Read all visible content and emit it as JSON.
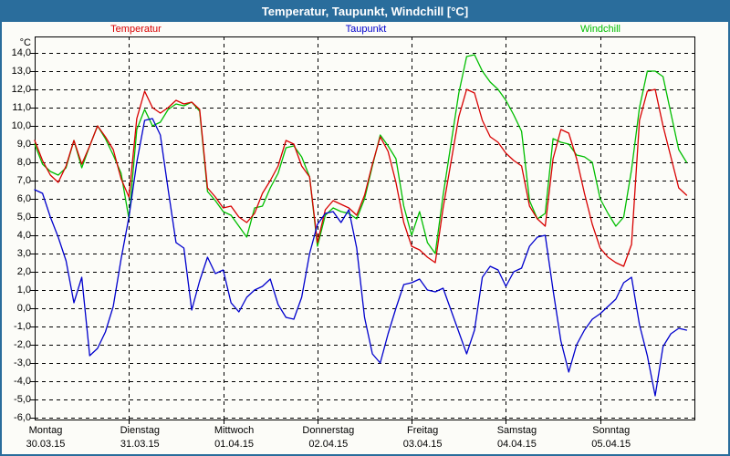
{
  "window": {
    "title": "Temperatur, Taupunkt, Windchill [°C]"
  },
  "frame_color": "#2a6d9c",
  "chart_data": {
    "type": "line",
    "title": "Temperatur, Taupunkt, Windchill [°C]",
    "y_unit": "°C",
    "ylim": [
      -6,
      14
    ],
    "y_tick_step": 1,
    "decimal_style": "comma",
    "grid": true,
    "legend_position": "top",
    "x_hours_range": [
      0,
      168
    ],
    "sample_interval_hours": 2,
    "days": [
      {
        "name": "Montag",
        "date": "30.03.15"
      },
      {
        "name": "Dienstag",
        "date": "31.03.15"
      },
      {
        "name": "Mittwoch",
        "date": "01.04.15"
      },
      {
        "name": "Donnerstag",
        "date": "02.04.15"
      },
      {
        "name": "Freitag",
        "date": "03.04.15"
      },
      {
        "name": "Samstag",
        "date": "04.04.15"
      },
      {
        "name": "Sonntag",
        "date": "05.04.15"
      }
    ],
    "series": [
      {
        "name": "Temperatur",
        "color": "#d80000",
        "values": [
          9.2,
          8.1,
          7.3,
          6.9,
          7.8,
          9.2,
          7.9,
          8.9,
          10.0,
          9.4,
          8.7,
          7.1,
          6.1,
          10.4,
          11.9,
          11.0,
          10.7,
          11.0,
          11.4,
          11.2,
          11.3,
          10.9,
          6.6,
          6.1,
          5.5,
          5.6,
          5.0,
          4.7,
          5.2,
          6.3,
          7.0,
          7.8,
          9.2,
          9.0,
          7.8,
          7.2,
          3.6,
          5.4,
          5.9,
          5.7,
          5.5,
          5.1,
          6.2,
          7.9,
          9.4,
          8.6,
          6.9,
          4.7,
          3.4,
          3.2,
          2.8,
          2.5,
          5.5,
          8.0,
          10.5,
          12.0,
          11.8,
          10.3,
          9.4,
          9.1,
          8.5,
          8.1,
          7.8,
          5.6,
          4.9,
          4.5,
          8.2,
          9.8,
          9.6,
          8.2,
          6.3,
          4.6,
          3.3,
          2.8,
          2.5,
          2.3,
          3.5,
          10.3,
          11.9,
          12.0,
          10.0,
          8.3,
          6.6,
          6.2
        ]
      },
      {
        "name": "Taupunkt",
        "color": "#0000cd",
        "values": [
          6.5,
          6.3,
          5.0,
          3.9,
          2.6,
          0.3,
          1.7,
          -2.6,
          -2.2,
          -1.3,
          0.1,
          2.7,
          5.0,
          8.0,
          10.3,
          10.4,
          9.5,
          6.5,
          3.6,
          3.3,
          -0.1,
          1.5,
          2.8,
          1.9,
          2.1,
          0.3,
          -0.2,
          0.6,
          1.0,
          1.2,
          1.6,
          0.2,
          -0.5,
          -0.6,
          0.6,
          3.0,
          4.6,
          5.2,
          5.3,
          4.7,
          5.4,
          3.3,
          -0.5,
          -2.5,
          -3.0,
          -1.4,
          0.0,
          1.3,
          1.4,
          1.6,
          1.0,
          0.9,
          1.1,
          -0.1,
          -1.3,
          -2.5,
          -1.2,
          1.7,
          2.3,
          2.1,
          1.2,
          2.0,
          2.2,
          3.4,
          3.9,
          4.0,
          1.0,
          -1.8,
          -3.5,
          -2.0,
          -1.2,
          -0.6,
          -0.3,
          0.1,
          0.5,
          1.4,
          1.7,
          -0.9,
          -2.6,
          -4.8,
          -2.1,
          -1.4,
          -1.1,
          -1.2
        ]
      },
      {
        "name": "Windchill",
        "color": "#00be00",
        "values": [
          9.0,
          7.9,
          7.5,
          7.3,
          7.7,
          9.2,
          7.7,
          8.9,
          10.0,
          9.3,
          8.4,
          7.4,
          4.9,
          9.8,
          10.9,
          10.0,
          10.2,
          10.9,
          11.2,
          11.1,
          11.3,
          10.8,
          6.4,
          5.9,
          5.3,
          5.1,
          4.5,
          3.9,
          5.5,
          5.6,
          6.6,
          7.4,
          8.8,
          8.9,
          8.3,
          7.2,
          3.4,
          5.1,
          5.5,
          5.3,
          5.2,
          4.9,
          6.0,
          7.8,
          9.5,
          8.9,
          8.2,
          5.6,
          4.0,
          5.3,
          3.6,
          3.0,
          6.2,
          9.0,
          11.8,
          13.8,
          13.9,
          13.0,
          12.4,
          12.0,
          11.4,
          10.6,
          9.7,
          5.9,
          4.9,
          5.2,
          9.3,
          9.1,
          9.0,
          8.4,
          8.3,
          8.0,
          6.0,
          5.2,
          4.5,
          5.0,
          7.6,
          11.0,
          13.0,
          13.0,
          12.7,
          10.7,
          8.7,
          8.0
        ]
      }
    ]
  }
}
